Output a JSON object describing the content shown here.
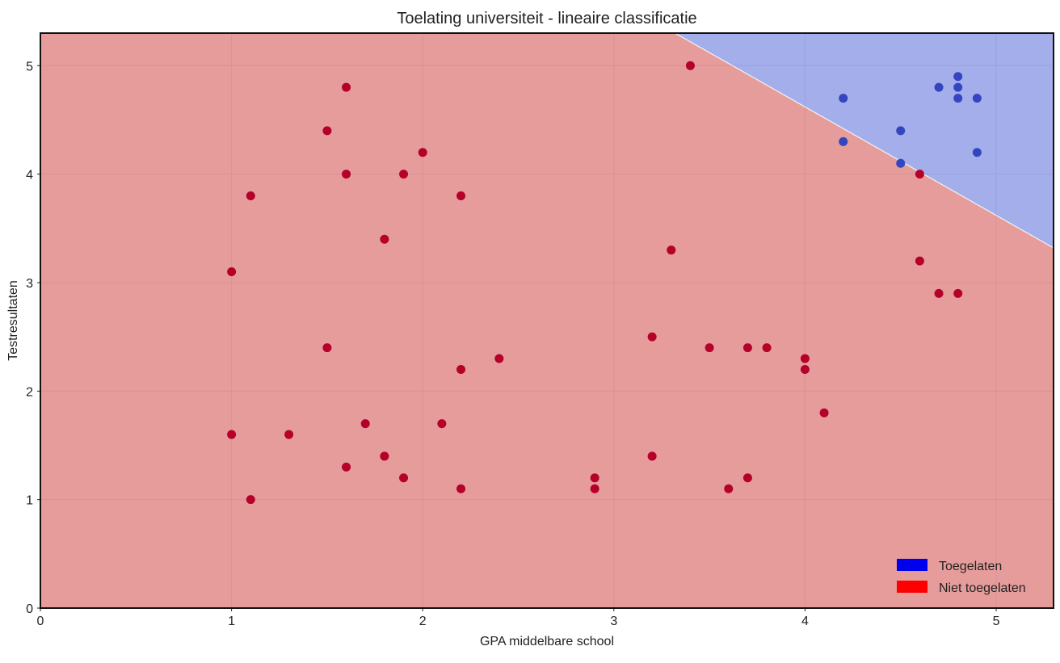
{
  "chart_data": {
    "type": "scatter",
    "title": "Toelating universiteit - lineaire classificatie",
    "xlabel": "GPA middelbare school",
    "ylabel": "Testresultaten",
    "xlim": [
      0,
      5.3
    ],
    "ylim": [
      0,
      5.3
    ],
    "xticks": [
      0,
      1,
      2,
      3,
      4,
      5
    ],
    "yticks": [
      0,
      1,
      2,
      3,
      4,
      5
    ],
    "grid": true,
    "legend_position": "bottom-right",
    "decision_boundary": {
      "description": "x + y = 8.62",
      "sum": 8.62
    },
    "regions": {
      "above": "#a3aeea",
      "below": "#e59c9a"
    },
    "series": [
      {
        "name": "Toegelaten",
        "legend_color": "#0000ee",
        "point_color": "#3346c0",
        "points": [
          [
            4.2,
            4.7
          ],
          [
            4.2,
            4.3
          ],
          [
            4.5,
            4.4
          ],
          [
            4.5,
            4.1
          ],
          [
            4.7,
            4.8
          ],
          [
            4.8,
            4.9
          ],
          [
            4.8,
            4.8
          ],
          [
            4.8,
            4.7
          ],
          [
            4.9,
            4.7
          ],
          [
            4.9,
            4.2
          ]
        ]
      },
      {
        "name": "Niet toegelaten",
        "legend_color": "#ff0000",
        "point_color": "#b5002a",
        "points": [
          [
            3.4,
            5.0
          ],
          [
            1.6,
            4.8
          ],
          [
            1.5,
            4.4
          ],
          [
            2.0,
            4.2
          ],
          [
            1.6,
            4.0
          ],
          [
            1.9,
            4.0
          ],
          [
            1.1,
            3.8
          ],
          [
            2.2,
            3.8
          ],
          [
            1.8,
            3.4
          ],
          [
            1.0,
            3.1
          ],
          [
            3.3,
            3.3
          ],
          [
            4.6,
            4.0
          ],
          [
            4.6,
            3.2
          ],
          [
            4.7,
            2.9
          ],
          [
            4.8,
            2.9
          ],
          [
            3.2,
            2.5
          ],
          [
            1.5,
            2.4
          ],
          [
            2.4,
            2.3
          ],
          [
            2.2,
            2.2
          ],
          [
            3.5,
            2.4
          ],
          [
            3.7,
            2.4
          ],
          [
            3.8,
            2.4
          ],
          [
            4.0,
            2.3
          ],
          [
            4.0,
            2.2
          ],
          [
            4.1,
            1.8
          ],
          [
            1.0,
            1.6
          ],
          [
            1.3,
            1.6
          ],
          [
            1.7,
            1.7
          ],
          [
            2.1,
            1.7
          ],
          [
            1.6,
            1.3
          ],
          [
            1.8,
            1.4
          ],
          [
            1.9,
            1.2
          ],
          [
            2.2,
            1.1
          ],
          [
            1.1,
            1.0
          ],
          [
            2.9,
            1.2
          ],
          [
            2.9,
            1.1
          ],
          [
            3.2,
            1.4
          ],
          [
            3.6,
            1.1
          ],
          [
            3.7,
            1.2
          ]
        ]
      }
    ]
  }
}
